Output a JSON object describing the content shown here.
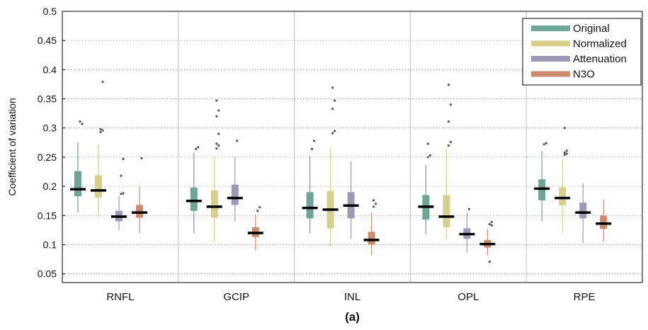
{
  "chart_data": {
    "type": "boxplot",
    "title": "",
    "caption": "(a)",
    "xlabel": "",
    "ylabel": "Coefficient of variation",
    "ylim": [
      0.035,
      0.5
    ],
    "yticks": [
      0.05,
      0.1,
      0.15,
      0.2,
      0.25,
      0.3,
      0.35,
      0.4,
      0.45,
      0.5
    ],
    "ytick_labels": [
      "0.05",
      "0.1",
      "0.15",
      "0.2",
      "0.25",
      "0.3",
      "0.35",
      "0.4",
      "0.45",
      "0.5"
    ],
    "grid": "horizontal dotted",
    "legend_position": "top-right",
    "categories": [
      "RNFL",
      "GCIP",
      "INL",
      "OPL",
      "RPE"
    ],
    "series": [
      {
        "name": "Original",
        "color": "#6fa596",
        "boxes": [
          {
            "whisker_low": 0.155,
            "q1": 0.183,
            "median": 0.195,
            "q3": 0.226,
            "whisker_high": 0.276,
            "outliers": [
              0.311,
              0.307
            ]
          },
          {
            "whisker_low": 0.12,
            "q1": 0.158,
            "median": 0.175,
            "q3": 0.198,
            "whisker_high": 0.258,
            "outliers": [
              0.264,
              0.267
            ]
          },
          {
            "whisker_low": 0.12,
            "q1": 0.145,
            "median": 0.163,
            "q3": 0.19,
            "whisker_high": 0.252,
            "outliers": [
              0.264,
              0.278
            ]
          },
          {
            "whisker_low": 0.118,
            "q1": 0.143,
            "median": 0.165,
            "q3": 0.185,
            "whisker_high": 0.237,
            "outliers": [
              0.25,
              0.253,
              0.273
            ]
          },
          {
            "whisker_low": 0.14,
            "q1": 0.176,
            "median": 0.196,
            "q3": 0.212,
            "whisker_high": 0.26,
            "outliers": [
              0.272,
              0.274
            ]
          }
        ]
      },
      {
        "name": "Normalized",
        "color": "#d6d08c",
        "boxes": [
          {
            "whisker_low": 0.148,
            "q1": 0.181,
            "median": 0.193,
            "q3": 0.219,
            "whisker_high": 0.272,
            "outliers": [
              0.293,
              0.296,
              0.298,
              0.379
            ]
          },
          {
            "whisker_low": 0.103,
            "q1": 0.146,
            "median": 0.165,
            "q3": 0.193,
            "whisker_high": 0.25,
            "outliers": [
              0.265,
              0.27,
              0.273,
              0.29,
              0.32,
              0.33,
              0.347
            ]
          },
          {
            "whisker_low": 0.096,
            "q1": 0.128,
            "median": 0.16,
            "q3": 0.192,
            "whisker_high": 0.265,
            "outliers": [
              0.291,
              0.295,
              0.333,
              0.347,
              0.369
            ]
          },
          {
            "whisker_low": 0.11,
            "q1": 0.13,
            "median": 0.148,
            "q3": 0.185,
            "whisker_high": 0.265,
            "outliers": [
              0.27,
              0.276,
              0.311,
              0.34,
              0.374
            ]
          },
          {
            "whisker_low": 0.12,
            "q1": 0.167,
            "median": 0.18,
            "q3": 0.198,
            "whisker_high": 0.245,
            "outliers": [
              0.254,
              0.256,
              0.258,
              0.261,
              0.3
            ]
          }
        ]
      },
      {
        "name": "Attenuation",
        "color": "#9d99b5",
        "boxes": [
          {
            "whisker_low": 0.125,
            "q1": 0.14,
            "median": 0.148,
            "q3": 0.158,
            "whisker_high": 0.183,
            "outliers": [
              0.187,
              0.188,
              0.218,
              0.247
            ]
          },
          {
            "whisker_low": 0.14,
            "q1": 0.168,
            "median": 0.18,
            "q3": 0.203,
            "whisker_high": 0.25,
            "outliers": [
              0.278
            ]
          },
          {
            "whisker_low": 0.11,
            "q1": 0.145,
            "median": 0.167,
            "q3": 0.19,
            "whisker_high": 0.243,
            "outliers": []
          },
          {
            "whisker_low": 0.087,
            "q1": 0.11,
            "median": 0.118,
            "q3": 0.128,
            "whisker_high": 0.155,
            "outliers": [
              0.161
            ]
          },
          {
            "whisker_low": 0.103,
            "q1": 0.145,
            "median": 0.155,
            "q3": 0.172,
            "whisker_high": 0.205,
            "outliers": []
          }
        ]
      },
      {
        "name": "N3O",
        "color": "#cc8c6c",
        "boxes": [
          {
            "whisker_low": 0.12,
            "q1": 0.146,
            "median": 0.155,
            "q3": 0.168,
            "whisker_high": 0.2,
            "outliers": [
              0.248
            ]
          },
          {
            "whisker_low": 0.09,
            "q1": 0.113,
            "median": 0.12,
            "q3": 0.13,
            "whisker_high": 0.152,
            "outliers": [
              0.158,
              0.164
            ]
          },
          {
            "whisker_low": 0.082,
            "q1": 0.1,
            "median": 0.108,
            "q3": 0.122,
            "whisker_high": 0.155,
            "outliers": [
              0.165,
              0.17,
              0.176
            ]
          },
          {
            "whisker_low": 0.082,
            "q1": 0.095,
            "median": 0.101,
            "q3": 0.108,
            "whisker_high": 0.127,
            "outliers": [
              0.071,
              0.133,
              0.135,
              0.139
            ]
          },
          {
            "whisker_low": 0.105,
            "q1": 0.127,
            "median": 0.136,
            "q3": 0.15,
            "whisker_high": 0.177,
            "outliers": []
          }
        ]
      }
    ]
  }
}
